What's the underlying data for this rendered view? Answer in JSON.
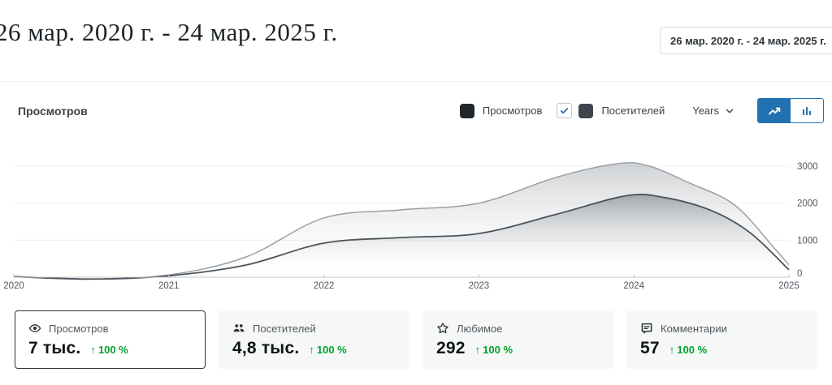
{
  "header": {
    "title": "26 мар. 2020 г. - 24 мар. 2025 г.",
    "date_range_button": "26 мар. 2020 г. - 24 мар. 2025 г."
  },
  "panel": {
    "heading": "Просмотров",
    "interval_dropdown": "Years",
    "legend": [
      {
        "key": "views",
        "label": "Просмотров",
        "has_checkbox": false,
        "swatch": "#21262b"
      },
      {
        "key": "visitors",
        "label": "Посетителей",
        "has_checkbox": true,
        "checked": true,
        "swatch": "#3e444b"
      }
    ]
  },
  "chart_data": {
    "type": "area",
    "x_years": [
      2020,
      2021,
      2022,
      2023,
      2024,
      2025
    ],
    "xlabel": "",
    "ylabel": "",
    "ylim": [
      0,
      3000
    ],
    "yticks": [
      0,
      1000,
      2000,
      3000
    ],
    "grid": true,
    "legend_position": "top-right",
    "series": [
      {
        "name": "Просмотров",
        "key": "views",
        "points": [
          [
            2020,
            20
          ],
          [
            2020.5,
            -50
          ],
          [
            2021,
            60
          ],
          [
            2021.5,
            550
          ],
          [
            2022,
            1600
          ],
          [
            2022.5,
            1820
          ],
          [
            2023,
            2000
          ],
          [
            2023.5,
            2700
          ],
          [
            2023.9,
            3070
          ],
          [
            2024.1,
            3000
          ],
          [
            2024.35,
            2560
          ],
          [
            2024.65,
            1950
          ],
          [
            2024.9,
            810
          ],
          [
            2025,
            330
          ]
        ]
      },
      {
        "name": "Посетителей",
        "key": "visitors",
        "points": [
          [
            2020,
            15
          ],
          [
            2020.5,
            -50
          ],
          [
            2021,
            40
          ],
          [
            2021.5,
            330
          ],
          [
            2022,
            920
          ],
          [
            2022.5,
            1070
          ],
          [
            2023,
            1180
          ],
          [
            2023.5,
            1700
          ],
          [
            2023.95,
            2200
          ],
          [
            2024.2,
            2150
          ],
          [
            2024.5,
            1800
          ],
          [
            2024.75,
            1200
          ],
          [
            2025,
            200
          ]
        ]
      }
    ]
  },
  "cards": [
    {
      "key": "views",
      "icon": "eye",
      "label": "Просмотров",
      "value": "7 тыс.",
      "arrow": "↑",
      "delta": "100 %",
      "selected": true
    },
    {
      "key": "visitors",
      "icon": "people",
      "label": "Посетителей",
      "value": "4,8 тыс.",
      "arrow": "↑",
      "delta": "100 %",
      "selected": false
    },
    {
      "key": "likes",
      "icon": "star",
      "label": "Любимое",
      "value": "292",
      "arrow": "↑",
      "delta": "100 %",
      "selected": false
    },
    {
      "key": "comments",
      "icon": "comment",
      "label": "Комментарии",
      "value": "57",
      "arrow": "↑",
      "delta": "100 %",
      "selected": false
    }
  ],
  "colors": {
    "accent_blue": "#2271b1",
    "green": "#00a32a",
    "views_line": "#9aa0a6",
    "views_fill_top": "rgba(168,173,178,0.55)",
    "views_fill_bottom": "rgba(255,255,255,0.05)",
    "visitors_line": "#4b535b",
    "visitors_fill_top": "rgba(110,117,124,0.55)",
    "visitors_fill_bottom": "rgba(255,255,255,0)",
    "grid": "#f0f0f1",
    "axis": "#c3c4c7",
    "tick_text": "#50575e"
  }
}
